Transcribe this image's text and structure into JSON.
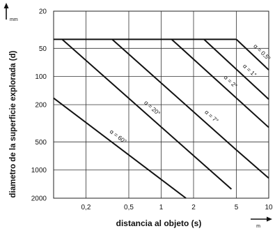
{
  "chart_data": {
    "type": "line",
    "x_scale": "log",
    "y_scale": "log",
    "y_inverted": true,
    "xlim": [
      0.1,
      10
    ],
    "ylim": [
      20,
      2000
    ],
    "xlabel": "distancia al objeto (s)",
    "ylabel": "diametro de la superficie explorada (d)",
    "x_unit": "m",
    "y_unit": "mm",
    "grid": true,
    "x_ticks": [
      {
        "value": 0.2,
        "label": "0,2"
      },
      {
        "value": 0.5,
        "label": "0,5"
      },
      {
        "value": 1,
        "label": "1"
      },
      {
        "value": 2,
        "label": "2"
      },
      {
        "value": 5,
        "label": "5"
      },
      {
        "value": 10,
        "label": "10"
      }
    ],
    "y_ticks": [
      {
        "value": 20,
        "label": "20"
      },
      {
        "value": 50,
        "label": "50"
      },
      {
        "value": 100,
        "label": "100"
      },
      {
        "value": 200,
        "label": "200"
      },
      {
        "value": 500,
        "label": "500"
      },
      {
        "value": 1000,
        "label": "1000"
      },
      {
        "value": 2000,
        "label": "2000"
      }
    ],
    "series": [
      {
        "name": "α = 0,5°",
        "points": [
          [
            5,
            40
          ],
          [
            10,
            85
          ]
        ]
      },
      {
        "name": "α = 1°",
        "points": [
          [
            2.5,
            40
          ],
          [
            10,
            175
          ]
        ]
      },
      {
        "name": "α = 2°",
        "points": [
          [
            1.25,
            40
          ],
          [
            10,
            350
          ]
        ]
      },
      {
        "name": "α = 7°",
        "points": [
          [
            0.35,
            40
          ],
          [
            5,
            610
          ],
          [
            10,
            1220
          ]
        ]
      },
      {
        "name": "α = 20°",
        "points": [
          [
            0.12,
            40
          ],
          [
            4.5,
            1600
          ]
        ]
      },
      {
        "name": "α = 60°",
        "points": [
          [
            0.1,
            170
          ],
          [
            1.7,
            2000
          ]
        ]
      }
    ],
    "envelope": {
      "name": "",
      "points": [
        [
          0.1,
          40
        ],
        [
          5,
          40
        ]
      ]
    }
  }
}
